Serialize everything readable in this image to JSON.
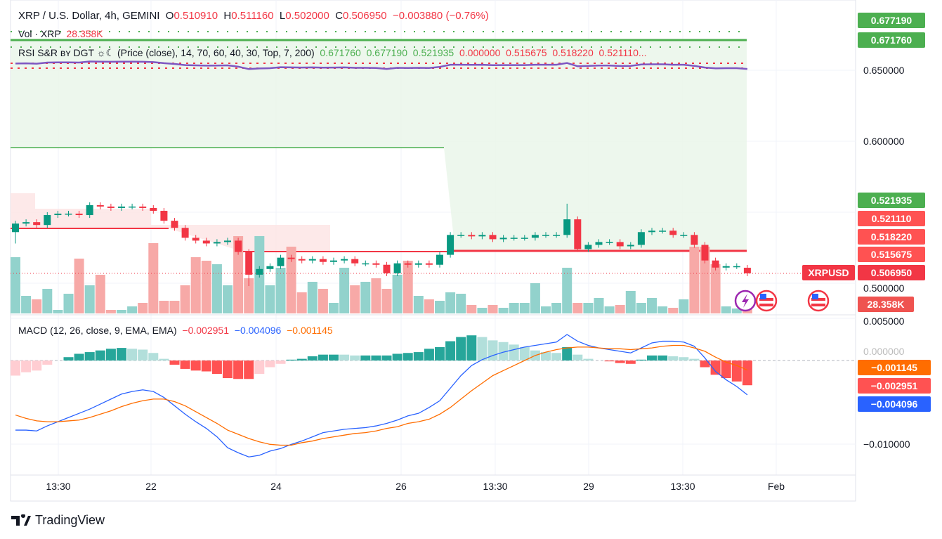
{
  "header": {
    "symbol": "XRP / U.S. Dollar, 4h, GEMINI",
    "o_label": "O",
    "o": "0.510910",
    "h_label": "H",
    "h": "0.511160",
    "l_label": "L",
    "l": "0.502000",
    "c_label": "C",
    "c": "0.506950",
    "change": "−0.003880 (−0.76%)"
  },
  "volume_legend": {
    "label": "Vol · XRP",
    "value": "28.358K"
  },
  "rsi_legend": {
    "label": "RSI S&R ʙʏ DGT ☼☾ (Price (close), 14, 70, 60, 40, 30, Top, 7, 200)",
    "values_green": [
      "0.671760",
      "0.677190",
      "0.521935"
    ],
    "values_red": [
      "0.000000",
      "0.515675",
      "0.518220",
      "0.521110..."
    ]
  },
  "macd_legend": {
    "label": "MACD (12, 26, close, 9, EMA, EMA)",
    "hist": "−0.002951",
    "macd": "−0.004096",
    "signal": "−0.001145"
  },
  "price_axis": [
    "0.650000",
    "0.600000",
    "0.500000"
  ],
  "price_tags": {
    "t1": "0.677190",
    "t2": "0.671760",
    "t3": "0.521935",
    "t4": "0.521110",
    "t5": "0.518220",
    "t6": "0.515675",
    "last": "0.506950",
    "symbol": "XRPUSD",
    "vol": "28.358K"
  },
  "macd_axis": [
    "0.005000",
    "0.000000",
    "−0.010000"
  ],
  "macd_tags": {
    "signal": "−0.001145",
    "hist": "−0.002951",
    "macd": "−0.004096"
  },
  "time_axis": [
    "13:30",
    "22",
    "24",
    "26",
    "13:30",
    "29",
    "13:30",
    "Feb"
  ],
  "branding": "TradingView",
  "colors": {
    "up": "#089981",
    "down": "#f23645",
    "macd": "#2962ff",
    "signal": "#ff6d00",
    "rsi": "#7e57c2",
    "support": "#4caf50"
  },
  "icons": [
    "lightning-event-icon",
    "us-flag-event-icon",
    "us-flag-event-icon"
  ],
  "chart_data": {
    "type": "candlestick",
    "price_range": [
      0.49,
      0.68
    ],
    "open": [
      0.536,
      0.542,
      0.543,
      0.541,
      0.548,
      0.549,
      0.549,
      0.548,
      0.555,
      0.554,
      0.553,
      0.554,
      0.554,
      0.553,
      0.551,
      0.544,
      0.539,
      0.532,
      0.53,
      0.528,
      0.529,
      0.53,
      0.522,
      0.506,
      0.51,
      0.512,
      0.518,
      0.517,
      0.516,
      0.517,
      0.515,
      0.516,
      0.517,
      0.514,
      0.514,
      0.513,
      0.507,
      0.514,
      0.513,
      0.514,
      0.513,
      0.52,
      0.534,
      0.534,
      0.533,
      0.534,
      0.531,
      0.532,
      0.532,
      0.532,
      0.534,
      0.534,
      0.534,
      0.545,
      0.524,
      0.527,
      0.529,
      0.529,
      0.526,
      0.527,
      0.536,
      0.537,
      0.537,
      0.534,
      0.534,
      0.527,
      0.516,
      0.511,
      0.512,
      0.5109
    ],
    "close": [
      0.542,
      0.543,
      0.541,
      0.548,
      0.549,
      0.549,
      0.548,
      0.555,
      0.554,
      0.553,
      0.554,
      0.554,
      0.553,
      0.551,
      0.544,
      0.539,
      0.532,
      0.53,
      0.528,
      0.529,
      0.53,
      0.522,
      0.506,
      0.51,
      0.512,
      0.518,
      0.517,
      0.516,
      0.517,
      0.515,
      0.516,
      0.517,
      0.514,
      0.514,
      0.513,
      0.507,
      0.514,
      0.513,
      0.514,
      0.513,
      0.52,
      0.534,
      0.534,
      0.533,
      0.534,
      0.531,
      0.532,
      0.532,
      0.532,
      0.534,
      0.534,
      0.534,
      0.545,
      0.524,
      0.527,
      0.529,
      0.529,
      0.526,
      0.527,
      0.536,
      0.537,
      0.537,
      0.534,
      0.534,
      0.527,
      0.516,
      0.511,
      0.512,
      0.512,
      0.50695
    ],
    "volume_k": [
      320,
      100,
      80,
      140,
      20,
      112,
      312,
      160,
      220,
      20,
      20,
      40,
      60,
      400,
      72,
      72,
      160,
      320,
      300,
      280,
      160,
      440,
      200,
      440,
      160,
      260,
      380,
      120,
      180,
      140,
      60,
      260,
      160,
      180,
      200,
      140,
      220,
      300,
      100,
      80,
      72,
      120,
      112,
      48,
      32,
      48,
      32,
      60,
      60,
      172,
      40,
      60,
      260,
      60,
      60,
      88,
      40,
      48,
      128,
      60,
      88,
      40,
      32,
      80,
      380,
      380,
      280,
      40,
      28,
      28.358
    ],
    "macd": [
      -0.0083,
      -0.0083,
      -0.0084,
      -0.0078,
      -0.0073,
      -0.0068,
      -0.0063,
      -0.0058,
      -0.0052,
      -0.0046,
      -0.004,
      -0.0037,
      -0.0035,
      -0.0037,
      -0.0044,
      -0.0054,
      -0.0064,
      -0.0073,
      -0.0081,
      -0.0091,
      -0.0104,
      -0.011,
      -0.0115,
      -0.0113,
      -0.0108,
      -0.0105,
      -0.01,
      -0.0096,
      -0.0091,
      -0.0086,
      -0.0084,
      -0.0082,
      -0.0081,
      -0.008,
      -0.0078,
      -0.0075,
      -0.0071,
      -0.0066,
      -0.0063,
      -0.0056,
      -0.0048,
      -0.0033,
      -0.0018,
      -0.0006,
      0.0001,
      0.0006,
      0.001,
      0.0013,
      0.0016,
      0.0018,
      0.002,
      0.0022,
      0.0031,
      0.0023,
      0.0018,
      0.0015,
      0.0013,
      0.0011,
      0.0009,
      0.0015,
      0.0021,
      0.0023,
      0.0023,
      0.0022,
      0.0017,
      0.0003,
      -0.0013,
      -0.0023,
      -0.0031,
      -0.004096
    ],
    "signal": [
      -0.0065,
      -0.0069,
      -0.0072,
      -0.0073,
      -0.0073,
      -0.0072,
      -0.0071,
      -0.0068,
      -0.0064,
      -0.006,
      -0.0055,
      -0.0051,
      -0.0048,
      -0.0046,
      -0.0046,
      -0.0049,
      -0.0054,
      -0.0061,
      -0.0068,
      -0.0075,
      -0.0083,
      -0.0088,
      -0.0093,
      -0.0097,
      -0.01,
      -0.0101,
      -0.0101,
      -0.0098,
      -0.0096,
      -0.0093,
      -0.0091,
      -0.0089,
      -0.0087,
      -0.0086,
      -0.0084,
      -0.0081,
      -0.0079,
      -0.0075,
      -0.0073,
      -0.007,
      -0.0064,
      -0.0056,
      -0.0046,
      -0.0036,
      -0.0027,
      -0.0018,
      -0.0012,
      -0.0006,
      0.0,
      0.0006,
      0.001,
      0.0013,
      0.0015,
      0.0016,
      0.0016,
      0.0015,
      0.0014,
      0.0014,
      0.0013,
      0.0014,
      0.0015,
      0.0017,
      0.0018,
      0.0018,
      0.0015,
      0.0011,
      0.0004,
      -0.0002,
      -0.0006,
      -0.001145
    ],
    "macd_range": [
      -0.0125,
      0.0055
    ]
  }
}
